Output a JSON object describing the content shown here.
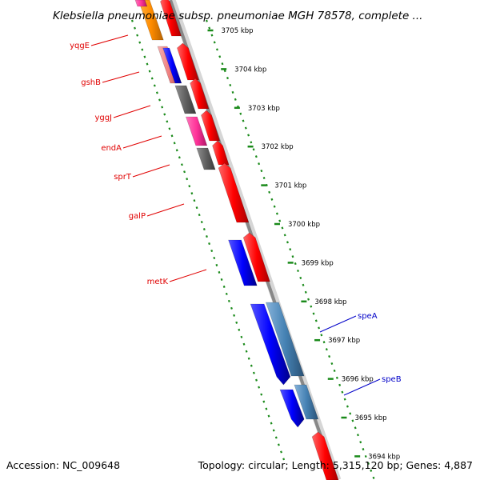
{
  "title": "Klebsiella pneumoniae subsp. pneumoniae MGH 78578, complete ...",
  "accession": "Accession: NC_009648",
  "summary": "Topology: circular; Length: 5,315,120 bp; Genes: 4,887",
  "ticks": [
    {
      "label": "3705 kbp",
      "kbp": 3705
    },
    {
      "label": "3704 kbp",
      "kbp": 3704
    },
    {
      "label": "3703 kbp",
      "kbp": 3703
    },
    {
      "label": "3702 kbp",
      "kbp": 3702
    },
    {
      "label": "3701 kbp",
      "kbp": 3701
    },
    {
      "label": "3700 kbp",
      "kbp": 3700
    },
    {
      "label": "3699 kbp",
      "kbp": 3699
    },
    {
      "label": "3698 kbp",
      "kbp": 3698
    },
    {
      "label": "3697 kbp",
      "kbp": 3697
    },
    {
      "label": "3696 kbp",
      "kbp": 3696
    },
    {
      "label": "3695 kbp",
      "kbp": 3695
    },
    {
      "label": "3694 kbp",
      "kbp": 3694
    }
  ],
  "genes_left": [
    {
      "label": "yqgE",
      "color": "#e00000"
    },
    {
      "label": "gshB",
      "color": "#e00000"
    },
    {
      "label": "yggJ",
      "color": "#e00000"
    },
    {
      "label": "endA",
      "color": "#e00000"
    },
    {
      "label": "sprT",
      "color": "#e00000"
    },
    {
      "label": "galP",
      "color": "#e00000"
    },
    {
      "label": "metK",
      "color": "#e00000"
    }
  ],
  "genes_right": [
    {
      "label": "speA",
      "color": "#0000c8"
    },
    {
      "label": "speB",
      "color": "#0000c8"
    }
  ],
  "colors": {
    "backbone": "#888888",
    "tick_dots": "#1a8a1a",
    "cds": "#ff0000",
    "gene": "#0000ff",
    "gene_light": "#4682b4",
    "orange": "#ff8c00",
    "magenta": "#ff3399",
    "salmon": "#f08080",
    "gray": "#606060"
  }
}
